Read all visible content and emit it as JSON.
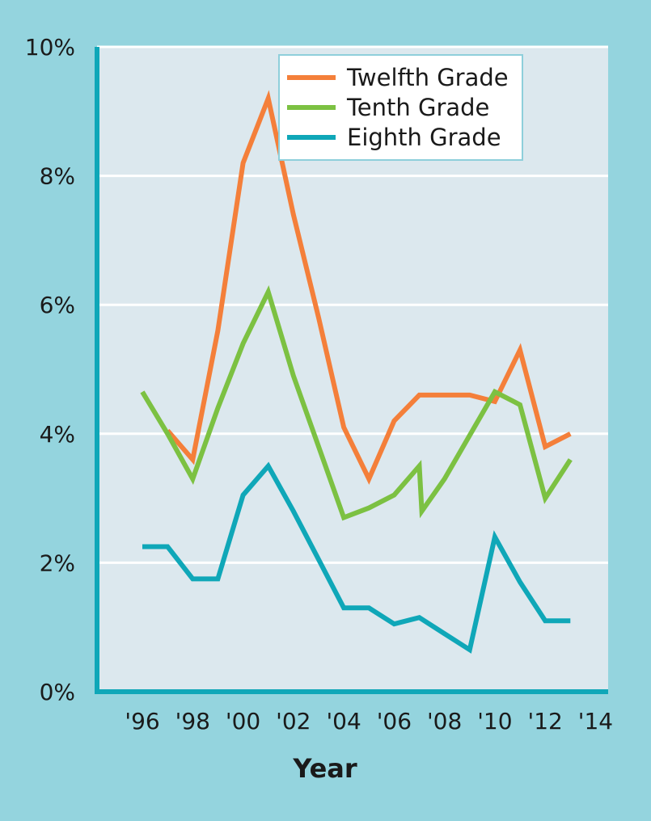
{
  "chart_data": {
    "type": "line",
    "title": "",
    "xlabel": "Year",
    "ylabel": "",
    "x_tick_labels": [
      "'96",
      "'98",
      "'00",
      "'02",
      "'04",
      "'06",
      "'08",
      "'10",
      "'12",
      "'14"
    ],
    "x_ticks": [
      1996,
      1998,
      2000,
      2002,
      2004,
      2006,
      2008,
      2010,
      2012,
      2014
    ],
    "y_tick_labels": [
      "0%",
      "2%",
      "4%",
      "6%",
      "8%",
      "10%"
    ],
    "y_ticks": [
      0,
      2,
      4,
      6,
      8,
      10
    ],
    "xlim": [
      1994.2,
      2014.5
    ],
    "ylim": [
      0,
      10
    ],
    "grid": true,
    "legend_position": "top-right",
    "series": [
      {
        "name": "Twelfth Grade",
        "color": "#f47f3a",
        "points": [
          [
            1997,
            4.05
          ],
          [
            1998,
            3.6
          ],
          [
            1999,
            5.6
          ],
          [
            2000,
            8.2
          ],
          [
            2001,
            9.2
          ],
          [
            2002,
            7.4
          ],
          [
            2003,
            5.8
          ],
          [
            2004,
            4.1
          ],
          [
            2005,
            3.3
          ],
          [
            2006,
            4.2
          ],
          [
            2007,
            4.6
          ],
          [
            2008,
            4.6
          ],
          [
            2009,
            4.6
          ],
          [
            2010,
            4.5
          ],
          [
            2011,
            5.3
          ],
          [
            2012,
            3.8
          ],
          [
            2013,
            4.0
          ]
        ]
      },
      {
        "name": "Tenth Grade",
        "color": "#7cc142",
        "points": [
          [
            1996,
            4.65
          ],
          [
            1997,
            4.0
          ],
          [
            1998,
            3.3
          ],
          [
            1999,
            4.4
          ],
          [
            2000,
            5.4
          ],
          [
            2001,
            6.2
          ],
          [
            2002,
            4.9
          ],
          [
            2003,
            3.8
          ],
          [
            2004,
            2.7
          ],
          [
            2005,
            2.85
          ],
          [
            2006,
            3.05
          ],
          [
            2007,
            3.5
          ],
          [
            2007.1,
            2.8
          ],
          [
            2008,
            3.3
          ],
          [
            2010,
            4.65
          ],
          [
            2011,
            4.45
          ],
          [
            2012,
            3.0
          ],
          [
            2013,
            3.6
          ]
        ]
      },
      {
        "name": "Eighth Grade",
        "color": "#0fa7b8",
        "points": [
          [
            1996,
            2.25
          ],
          [
            1997,
            2.25
          ],
          [
            1998,
            1.75
          ],
          [
            1999,
            1.75
          ],
          [
            2000,
            3.05
          ],
          [
            2001,
            3.5
          ],
          [
            2002,
            2.8
          ],
          [
            2003,
            2.05
          ],
          [
            2004,
            1.3
          ],
          [
            2005,
            1.3
          ],
          [
            2006,
            1.05
          ],
          [
            2007,
            1.15
          ],
          [
            2008,
            0.9
          ],
          [
            2009,
            0.65
          ],
          [
            2010,
            2.4
          ],
          [
            2011,
            1.7
          ],
          [
            2012,
            1.1
          ],
          [
            2013,
            1.1
          ]
        ]
      }
    ]
  },
  "colors": {
    "page_background": "#94d4de",
    "plot_background": "#dce8ee",
    "axis": "#0fa7b8",
    "grid": "#ffffff"
  }
}
